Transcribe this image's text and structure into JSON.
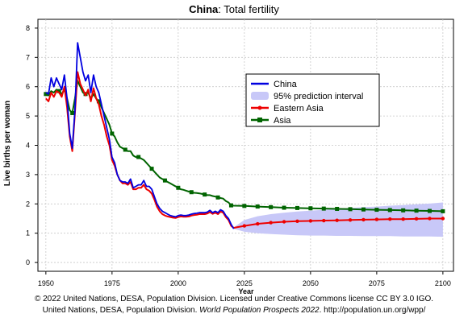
{
  "chart_data": {
    "type": "line",
    "title_bold": "China",
    "title_rest": ": Total fertility",
    "xlabel": "Year",
    "ylabel": "Live births per woman",
    "xlim": [
      1947,
      2104
    ],
    "ylim": [
      -0.3,
      8.3
    ],
    "xticks": [
      1950,
      1975,
      2000,
      2025,
      2050,
      2075,
      2100
    ],
    "yticks": [
      0,
      1,
      2,
      3,
      4,
      5,
      6,
      7,
      8
    ],
    "grid": true,
    "legend_position": "upper-right",
    "colors": {
      "china": "#0000e0",
      "interval": "#c8c8f8",
      "eastern_asia": "#ee0000",
      "asia": "#006400"
    },
    "series": [
      {
        "name": "China",
        "key": "china",
        "style": "line",
        "x": [
          1950,
          1951,
          1952,
          1953,
          1954,
          1955,
          1956,
          1957,
          1958,
          1959,
          1960,
          1961,
          1962,
          1963,
          1964,
          1965,
          1966,
          1967,
          1968,
          1969,
          1970,
          1971,
          1972,
          1973,
          1974,
          1975,
          1976,
          1977,
          1978,
          1979,
          1980,
          1981,
          1982,
          1983,
          1984,
          1985,
          1986,
          1987,
          1988,
          1989,
          1990,
          1991,
          1992,
          1993,
          1994,
          1995,
          1996,
          1997,
          1998,
          1999,
          2000,
          2001,
          2002,
          2003,
          2004,
          2005,
          2006,
          2007,
          2008,
          2009,
          2010,
          2011,
          2012,
          2013,
          2014,
          2015,
          2016,
          2017,
          2018,
          2019,
          2020,
          2021
        ],
        "y": [
          5.8,
          5.75,
          6.3,
          6.0,
          6.3,
          6.1,
          5.9,
          6.4,
          5.6,
          4.4,
          3.9,
          5.2,
          7.5,
          7.0,
          6.5,
          6.2,
          6.4,
          5.8,
          6.4,
          6.0,
          5.8,
          5.4,
          5.0,
          4.6,
          4.2,
          3.6,
          3.4,
          3.0,
          2.8,
          2.75,
          2.75,
          2.7,
          2.85,
          2.55,
          2.6,
          2.65,
          2.65,
          2.8,
          2.6,
          2.6,
          2.5,
          2.25,
          2.0,
          1.85,
          1.75,
          1.7,
          1.65,
          1.6,
          1.58,
          1.56,
          1.6,
          1.62,
          1.6,
          1.6,
          1.62,
          1.65,
          1.67,
          1.68,
          1.7,
          1.7,
          1.7,
          1.72,
          1.78,
          1.7,
          1.75,
          1.7,
          1.8,
          1.75,
          1.6,
          1.5,
          1.3,
          1.15
        ]
      },
      {
        "name": "95% prediction interval",
        "key": "interval",
        "style": "band",
        "x": [
          2021,
          2025,
          2030,
          2035,
          2040,
          2045,
          2050,
          2055,
          2060,
          2065,
          2070,
          2075,
          2080,
          2085,
          2090,
          2095,
          2100
        ],
        "y_low": [
          1.15,
          1.05,
          1.0,
          0.97,
          0.95,
          0.93,
          0.92,
          0.92,
          0.91,
          0.91,
          0.9,
          0.9,
          0.9,
          0.89,
          0.89,
          0.89,
          0.88
        ],
        "y_high": [
          1.2,
          1.45,
          1.58,
          1.65,
          1.7,
          1.74,
          1.77,
          1.8,
          1.83,
          1.86,
          1.89,
          1.91,
          1.94,
          1.96,
          1.99,
          2.01,
          2.05
        ]
      },
      {
        "name": "Eastern Asia",
        "key": "eastern_asia",
        "style": "line",
        "marker": "circle",
        "x": [
          1950,
          1951,
          1952,
          1953,
          1954,
          1955,
          1956,
          1957,
          1958,
          1959,
          1960,
          1961,
          1962,
          1963,
          1964,
          1965,
          1966,
          1967,
          1968,
          1969,
          1970,
          1971,
          1972,
          1973,
          1974,
          1975,
          1976,
          1977,
          1978,
          1979,
          1980,
          1981,
          1982,
          1983,
          1984,
          1985,
          1986,
          1987,
          1988,
          1989,
          1990,
          1991,
          1992,
          1993,
          1994,
          1995,
          1996,
          1997,
          1998,
          1999,
          2000,
          2001,
          2002,
          2003,
          2004,
          2005,
          2006,
          2007,
          2008,
          2009,
          2010,
          2011,
          2012,
          2013,
          2014,
          2015,
          2016,
          2017,
          2018,
          2019,
          2020,
          2021,
          2022,
          2025,
          2030,
          2035,
          2040,
          2045,
          2050,
          2055,
          2060,
          2065,
          2070,
          2075,
          2080,
          2085,
          2090,
          2095,
          2100
        ],
        "y": [
          5.6,
          5.5,
          5.8,
          5.65,
          5.85,
          5.8,
          5.65,
          6.0,
          5.3,
          4.3,
          3.8,
          5.1,
          6.5,
          6.1,
          5.9,
          5.7,
          5.9,
          5.5,
          5.95,
          5.6,
          5.4,
          5.0,
          4.7,
          4.3,
          4.0,
          3.5,
          3.3,
          3.0,
          2.8,
          2.7,
          2.7,
          2.65,
          2.75,
          2.5,
          2.5,
          2.55,
          2.55,
          2.65,
          2.5,
          2.45,
          2.35,
          2.15,
          1.9,
          1.75,
          1.65,
          1.6,
          1.57,
          1.55,
          1.53,
          1.52,
          1.55,
          1.57,
          1.56,
          1.56,
          1.57,
          1.6,
          1.62,
          1.63,
          1.65,
          1.65,
          1.65,
          1.67,
          1.72,
          1.66,
          1.7,
          1.65,
          1.74,
          1.7,
          1.55,
          1.45,
          1.25,
          1.18,
          1.2,
          1.25,
          1.32,
          1.36,
          1.39,
          1.41,
          1.42,
          1.43,
          1.44,
          1.45,
          1.46,
          1.47,
          1.48,
          1.48,
          1.49,
          1.5,
          1.5
        ]
      },
      {
        "name": "Asia",
        "key": "asia",
        "style": "line",
        "marker": "square",
        "x": [
          1950,
          1951,
          1952,
          1953,
          1954,
          1955,
          1956,
          1957,
          1958,
          1959,
          1960,
          1961,
          1962,
          1963,
          1964,
          1965,
          1966,
          1967,
          1968,
          1969,
          1970,
          1971,
          1972,
          1973,
          1974,
          1975,
          1976,
          1977,
          1978,
          1979,
          1980,
          1981,
          1982,
          1983,
          1984,
          1985,
          1986,
          1987,
          1988,
          1989,
          1990,
          1991,
          1992,
          1993,
          1994,
          1995,
          1996,
          1997,
          1998,
          1999,
          2000,
          2001,
          2002,
          2003,
          2004,
          2005,
          2006,
          2007,
          2008,
          2009,
          2010,
          2011,
          2012,
          2013,
          2014,
          2015,
          2016,
          2017,
          2018,
          2019,
          2020,
          2021,
          2025,
          2030,
          2035,
          2040,
          2045,
          2050,
          2055,
          2060,
          2065,
          2070,
          2075,
          2080,
          2085,
          2090,
          2095,
          2100
        ],
        "y": [
          5.75,
          5.7,
          5.85,
          5.8,
          5.9,
          5.85,
          5.75,
          5.9,
          5.6,
          5.2,
          5.1,
          5.6,
          6.2,
          6.0,
          5.8,
          5.75,
          5.8,
          5.6,
          5.75,
          5.6,
          5.5,
          5.3,
          5.1,
          4.9,
          4.7,
          4.4,
          4.3,
          4.1,
          3.95,
          3.9,
          3.85,
          3.8,
          3.8,
          3.65,
          3.6,
          3.6,
          3.55,
          3.5,
          3.4,
          3.3,
          3.2,
          3.1,
          3.0,
          2.9,
          2.85,
          2.8,
          2.75,
          2.7,
          2.65,
          2.6,
          2.55,
          2.5,
          2.48,
          2.45,
          2.42,
          2.4,
          2.38,
          2.37,
          2.36,
          2.34,
          2.32,
          2.3,
          2.3,
          2.27,
          2.25,
          2.22,
          2.2,
          2.18,
          2.1,
          2.05,
          1.95,
          1.94,
          1.93,
          1.91,
          1.89,
          1.87,
          1.86,
          1.85,
          1.84,
          1.83,
          1.82,
          1.81,
          1.8,
          1.79,
          1.78,
          1.77,
          1.76,
          1.75
        ]
      }
    ]
  },
  "footer": {
    "line1": "© 2022 United Nations, DESA, Population Division. Licensed under Creative Commons license CC BY 3.0 IGO.",
    "line2_prefix": "United Nations, DESA, Population Division. ",
    "line2_italic": "World Population Prospects 2022",
    "line2_suffix": ". http://population.un.org/wpp/"
  }
}
